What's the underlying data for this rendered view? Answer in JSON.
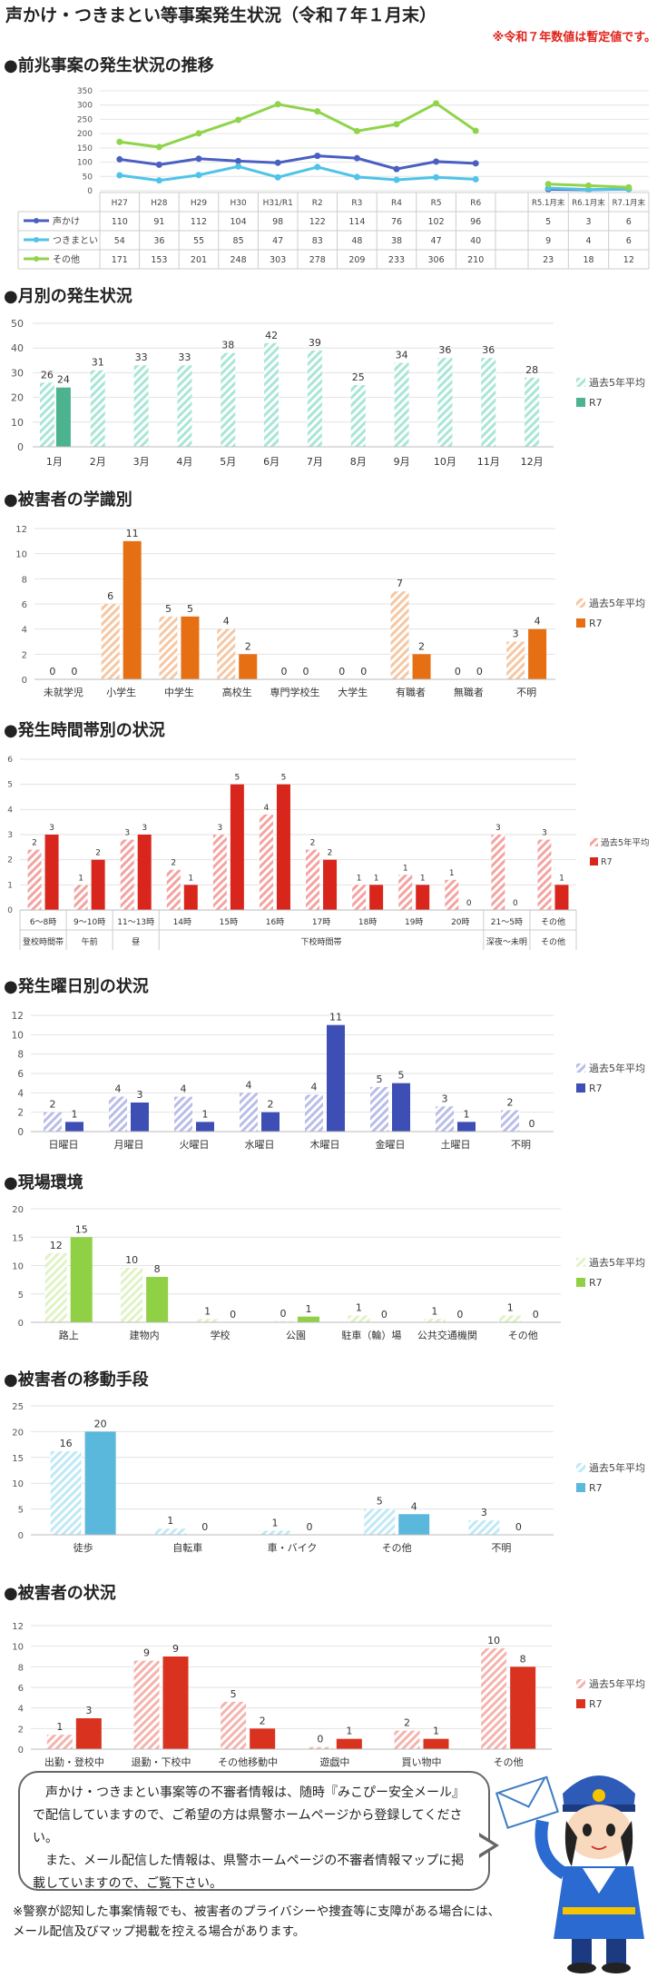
{
  "header": {
    "title": "声かけ・つきまとい等事案発生状況（令和７年１月末）",
    "note": "※令和７年数値は暫定値です。"
  },
  "colors": {
    "line_koekake": "#4a5fc1",
    "line_tsukimatoi": "#4fc3e8",
    "line_other": "#8fd44a",
    "green_avg": "#a8e6d6",
    "green_r7": "#4cb38e",
    "orange_avg": "#f6c7a3",
    "orange_r7": "#e66f14",
    "red_avg": "#f4a3a0",
    "red_r7": "#d9261c",
    "blue_avg": "#b9bde8",
    "blue_r7": "#3d4fb5",
    "lime_avg": "#dff3c4",
    "lime_r7": "#8fd044",
    "cyan_avg": "#bfe9f5",
    "cyan_r7": "#5ab8dc",
    "pink_avg": "#f5b3ad",
    "pink_r7": "#d9321f"
  },
  "sections": {
    "s1": "●前兆事案の発生状況の推移",
    "s2": "●月別の発生状況",
    "s3": "●被害者の学識別",
    "s4": "●発生時間帯別の状況",
    "s5": "●発生曜日別の状況",
    "s6": "●現場環境",
    "s7": "●被害者の移動手段",
    "s8": "●被害者の状況"
  },
  "chart_data": [
    {
      "id": "trend",
      "type": "line",
      "ylim": [
        0,
        350
      ],
      "yticks": [
        0,
        50,
        100,
        150,
        200,
        250,
        300,
        350
      ],
      "categories": [
        "H27",
        "H28",
        "H29",
        "H30",
        "H31/R1",
        "R2",
        "R3",
        "R4",
        "R5",
        "R6"
      ],
      "categories2": [
        "R5.1月末",
        "R6.1月末",
        "R7.1月末"
      ],
      "series": [
        {
          "name": "声かけ",
          "values": [
            110,
            91,
            112,
            104,
            98,
            122,
            114,
            76,
            102,
            96
          ],
          "values2": [
            5,
            3,
            6
          ]
        },
        {
          "name": "つきまとい",
          "values": [
            54,
            36,
            55,
            85,
            47,
            83,
            48,
            38,
            47,
            40
          ],
          "values2": [
            9,
            4,
            6
          ]
        },
        {
          "name": "その他",
          "values": [
            171,
            153,
            201,
            248,
            303,
            278,
            209,
            233,
            306,
            210
          ],
          "values2": [
            23,
            18,
            12
          ]
        }
      ]
    },
    {
      "id": "monthly",
      "type": "bar",
      "ylim": [
        0,
        50
      ],
      "yticks": [
        0,
        10,
        20,
        30,
        40,
        50
      ],
      "categories": [
        "1月",
        "2月",
        "3月",
        "4月",
        "5月",
        "6月",
        "7月",
        "8月",
        "9月",
        "10月",
        "11月",
        "12月"
      ],
      "series": [
        {
          "name": "過去5年平均",
          "values": [
            26,
            31,
            33,
            33,
            38,
            42,
            39,
            25,
            34,
            36,
            36,
            28
          ]
        },
        {
          "name": "R7",
          "values": [
            24,
            null,
            null,
            null,
            null,
            null,
            null,
            null,
            null,
            null,
            null,
            null
          ]
        }
      ]
    },
    {
      "id": "school",
      "type": "bar",
      "ylim": [
        0,
        12
      ],
      "yticks": [
        0,
        2,
        4,
        6,
        8,
        10,
        12
      ],
      "categories": [
        "未就学児",
        "小学生",
        "中学生",
        "高校生",
        "専門学校生",
        "大学生",
        "有職者",
        "無職者",
        "不明"
      ],
      "series": [
        {
          "name": "過去5年平均",
          "values": [
            0,
            6,
            5,
            4,
            0,
            0,
            7,
            0,
            3
          ]
        },
        {
          "name": "R7",
          "values": [
            0,
            11,
            5,
            2,
            0,
            0,
            2,
            0,
            4
          ]
        }
      ]
    },
    {
      "id": "time",
      "type": "bar",
      "ylim": [
        0,
        6
      ],
      "yticks": [
        0,
        1,
        2,
        3,
        4,
        5,
        6
      ],
      "categories": [
        "6～8時",
        "9～10時",
        "11～13時",
        "14時",
        "15時",
        "16時",
        "17時",
        "18時",
        "19時",
        "20時",
        "21～5時",
        "その他"
      ],
      "groups": [
        {
          "label": "登校時間帯",
          "from": 0,
          "to": 0
        },
        {
          "label": "午前",
          "from": 1,
          "to": 1
        },
        {
          "label": "昼",
          "from": 2,
          "to": 2
        },
        {
          "label": "下校時間帯",
          "from": 3,
          "to": 9
        },
        {
          "label": "深夜～未明",
          "from": 10,
          "to": 10
        },
        {
          "label": "その他",
          "from": 11,
          "to": 11
        }
      ],
      "series": [
        {
          "name": "過去5年平均",
          "values": [
            2,
            1,
            3,
            2,
            3,
            4,
            2,
            1,
            1,
            1,
            3,
            3
          ],
          "heights": [
            2.4,
            1.0,
            2.8,
            1.6,
            3.0,
            3.8,
            2.4,
            1.0,
            1.4,
            1.2,
            3.0,
            2.8
          ]
        },
        {
          "name": "R7",
          "values": [
            3,
            2,
            3,
            1,
            5,
            5,
            2,
            1,
            1,
            0,
            0,
            1
          ]
        }
      ]
    },
    {
      "id": "weekday",
      "type": "bar",
      "ylim": [
        0,
        12
      ],
      "yticks": [
        0,
        2,
        4,
        6,
        8,
        10,
        12
      ],
      "categories": [
        "日曜日",
        "月曜日",
        "火曜日",
        "水曜日",
        "木曜日",
        "金曜日",
        "土曜日",
        "不明"
      ],
      "series": [
        {
          "name": "過去5年平均",
          "values": [
            2,
            4,
            4,
            4,
            4,
            5,
            3,
            2
          ],
          "heights": [
            2.0,
            3.6,
            3.6,
            4.0,
            3.8,
            4.6,
            2.6,
            2.2
          ]
        },
        {
          "name": "R7",
          "values": [
            1,
            3,
            1,
            2,
            11,
            5,
            1,
            0
          ]
        }
      ]
    },
    {
      "id": "place",
      "type": "bar",
      "ylim": [
        0,
        20
      ],
      "yticks": [
        0,
        5,
        10,
        15,
        20
      ],
      "categories": [
        "路上",
        "建物内",
        "学校",
        "公園",
        "駐車（輪）場",
        "公共交通機関",
        "その他"
      ],
      "series": [
        {
          "name": "過去5年平均",
          "values": [
            12,
            10,
            1,
            0,
            1,
            1,
            1
          ],
          "heights": [
            12.2,
            9.6,
            0.6,
            0.2,
            1.2,
            0.6,
            1.2
          ]
        },
        {
          "name": "R7",
          "values": [
            15,
            8,
            0,
            1,
            0,
            0,
            0
          ]
        }
      ]
    },
    {
      "id": "transport",
      "type": "bar",
      "ylim": [
        0,
        25
      ],
      "yticks": [
        0,
        5,
        10,
        15,
        20,
        25
      ],
      "categories": [
        "徒歩",
        "自転車",
        "車・バイク",
        "その他",
        "不明"
      ],
      "series": [
        {
          "name": "過去5年平均",
          "values": [
            16,
            1,
            1,
            5,
            3
          ],
          "heights": [
            16.2,
            1.2,
            0.8,
            5.0,
            2.8
          ]
        },
        {
          "name": "R7",
          "values": [
            20,
            0,
            0,
            4,
            0
          ]
        }
      ]
    },
    {
      "id": "situation",
      "type": "bar",
      "ylim": [
        0,
        12
      ],
      "yticks": [
        0,
        2,
        4,
        6,
        8,
        10,
        12
      ],
      "categories": [
        "出勤・登校中",
        "退勤・下校中",
        "その他移動中",
        "遊戯中",
        "買い物中",
        "その他"
      ],
      "series": [
        {
          "name": "過去5年平均",
          "values": [
            1,
            9,
            5,
            0,
            2,
            10
          ],
          "heights": [
            1.4,
            8.6,
            4.6,
            0.2,
            1.8,
            9.8
          ]
        },
        {
          "name": "R7",
          "values": [
            3,
            9,
            2,
            1,
            1,
            8
          ]
        }
      ]
    }
  ],
  "footer": {
    "bubble_p1": "声かけ・つきまとい事案等の不審者情報は、随時『みこぴー安全メール』で配信していますので、ご希望の方は県警ホームページから登録してください。",
    "bubble_p2": "また、メール配信した情報は、県警ホームページの不審者情報マップに掲載していますので、ご覧下さい。",
    "note": "※警察が認知した事案情報でも、被害者のプライバシーや捜査等に支障がある場合には、メール配信及びマップ掲載を控える場合があります。"
  }
}
